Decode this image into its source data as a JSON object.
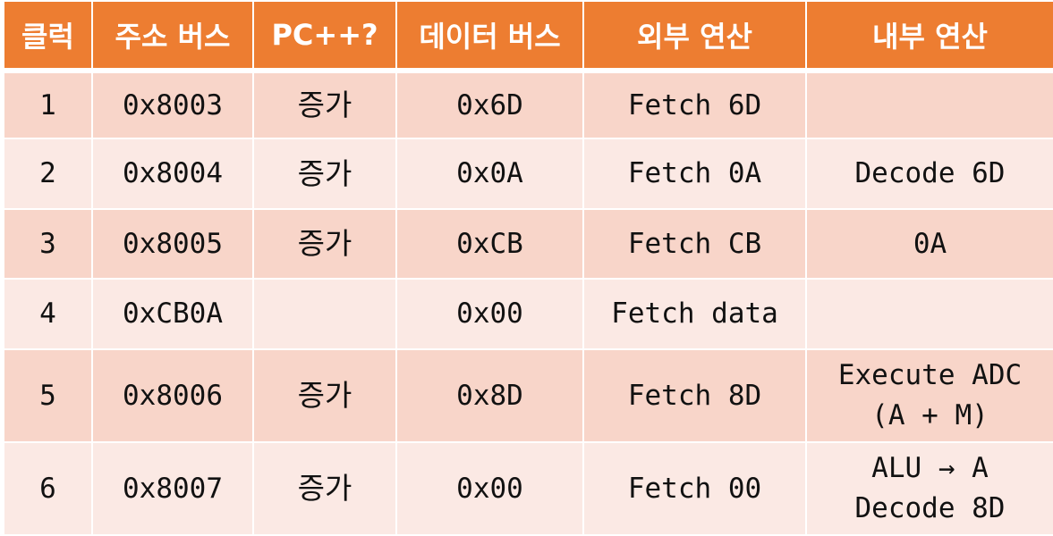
{
  "headers": {
    "clock": "클럭",
    "address_bus": "주소 버스",
    "pc_increment": "PC++?",
    "data_bus": "데이터 버스",
    "external_op": "외부 연산",
    "internal_op": "내부 연산"
  },
  "rows": [
    {
      "clock": "1",
      "address": "0x8003",
      "pc": "증가",
      "data": "0x6D",
      "external": "Fetch 6D",
      "internal_1": "",
      "internal_2": ""
    },
    {
      "clock": "2",
      "address": "0x8004",
      "pc": "증가",
      "data": "0x0A",
      "external": "Fetch 0A",
      "internal_1": "Decode 6D",
      "internal_2": ""
    },
    {
      "clock": "3",
      "address": "0x8005",
      "pc": "증가",
      "data": "0xCB",
      "external": "Fetch CB",
      "internal_1": "0A",
      "internal_2": ""
    },
    {
      "clock": "4",
      "address": "0xCB0A",
      "pc": "",
      "data": "0x00",
      "external": "Fetch data",
      "internal_1": "",
      "internal_2": ""
    },
    {
      "clock": "5",
      "address": "0x8006",
      "pc": "증가",
      "data": "0x8D",
      "external": "Fetch 8D",
      "internal_1": "Execute ADC",
      "internal_2": "(A + M)"
    },
    {
      "clock": "6",
      "address": "0x8007",
      "pc": "증가",
      "data": "0x00",
      "external": "Fetch 00",
      "internal_1": "ALU → A",
      "internal_2": "Decode 8D"
    }
  ],
  "colors": {
    "header": "#ed7d31",
    "row_dark": "#f8d5c9",
    "row_light": "#fbe9e4"
  }
}
